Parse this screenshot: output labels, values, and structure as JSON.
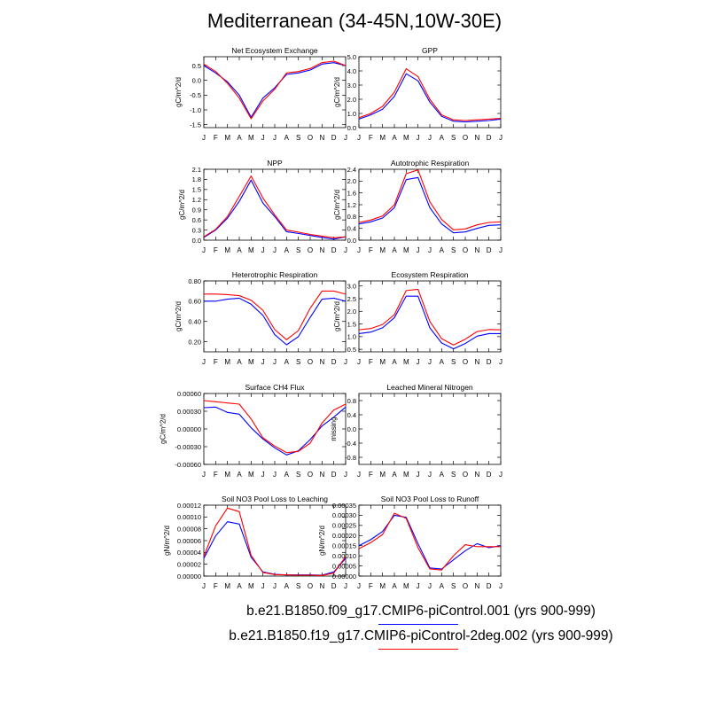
{
  "title": "Mediterranean (34-45N,10W-30E)",
  "colors": {
    "series1": "#0000ff",
    "series2": "#ff0000",
    "axis": "#000000"
  },
  "legend": [
    {
      "label": "b.e21.B1850.f09_g17.CMIP6-piControl.001 (yrs 900-999)",
      "color": "#0000ff"
    },
    {
      "label": "b.e21.B1850.f19_g17.CMIP6-piControl-2deg.002 (yrs 900-999)",
      "color": "#ff0000"
    }
  ],
  "chart_data": [
    {
      "type": "line",
      "title": "Net Ecosystem Exchange",
      "ylabel": "gC/m^2/d",
      "categories": [
        "J",
        "F",
        "M",
        "A",
        "M",
        "J",
        "J",
        "A",
        "S",
        "O",
        "N",
        "D",
        "J"
      ],
      "ylim": [
        -1.6,
        0.8
      ],
      "yticks": [
        -1.5,
        -1.0,
        -0.5,
        0.0,
        0.5
      ],
      "yticklabels": [
        "-1.5",
        "-1.0",
        "-0.5",
        "0.0",
        "0.5"
      ],
      "series": [
        {
          "values": [
            0.5,
            0.25,
            -0.05,
            -0.5,
            -1.25,
            -0.6,
            -0.25,
            0.2,
            0.25,
            0.35,
            0.55,
            0.6,
            0.5
          ]
        },
        {
          "values": [
            0.55,
            0.3,
            -0.1,
            -0.6,
            -1.3,
            -0.7,
            -0.3,
            0.25,
            0.3,
            0.4,
            0.6,
            0.65,
            0.5
          ]
        }
      ]
    },
    {
      "type": "line",
      "title": "GPP",
      "ylabel": "gC/m^2/d",
      "categories": [
        "J",
        "F",
        "M",
        "A",
        "M",
        "J",
        "J",
        "A",
        "S",
        "O",
        "N",
        "D",
        "J"
      ],
      "ylim": [
        0.0,
        5.0
      ],
      "yticks": [
        0.0,
        1.0,
        2.0,
        3.0,
        4.0,
        5.0
      ],
      "yticklabels": [
        "0.0",
        "1.0",
        "2.0",
        "3.0",
        "4.0",
        "5.0"
      ],
      "series": [
        {
          "values": [
            0.6,
            0.9,
            1.3,
            2.2,
            3.8,
            3.3,
            1.8,
            0.8,
            0.45,
            0.4,
            0.45,
            0.5,
            0.6
          ]
        },
        {
          "values": [
            0.7,
            1.0,
            1.5,
            2.5,
            4.15,
            3.6,
            2.0,
            0.9,
            0.55,
            0.5,
            0.55,
            0.6,
            0.65
          ]
        }
      ]
    },
    {
      "type": "line",
      "title": "NPP",
      "ylabel": "gC/m^2/d",
      "categories": [
        "J",
        "F",
        "M",
        "A",
        "M",
        "J",
        "J",
        "A",
        "S",
        "O",
        "N",
        "D",
        "J"
      ],
      "ylim": [
        0.0,
        2.1
      ],
      "yticks": [
        0.0,
        0.3,
        0.6,
        0.9,
        1.2,
        1.5,
        1.8,
        2.1
      ],
      "yticklabels": [
        "0.0",
        "0.3",
        "0.6",
        "0.9",
        "1.2",
        "1.5",
        "1.8",
        "2.1"
      ],
      "series": [
        {
          "values": [
            0.08,
            0.3,
            0.65,
            1.15,
            1.78,
            1.1,
            0.7,
            0.25,
            0.2,
            0.14,
            0.08,
            0.03,
            0.1
          ]
        },
        {
          "values": [
            0.1,
            0.32,
            0.7,
            1.3,
            1.9,
            1.25,
            0.75,
            0.3,
            0.24,
            0.17,
            0.12,
            0.07,
            0.1
          ]
        }
      ]
    },
    {
      "type": "line",
      "title": "Autotrophic Respiration",
      "ylabel": "gC/m^2/d",
      "categories": [
        "J",
        "F",
        "M",
        "A",
        "M",
        "J",
        "J",
        "A",
        "S",
        "O",
        "N",
        "D",
        "J"
      ],
      "ylim": [
        0.0,
        2.4
      ],
      "yticks": [
        0.0,
        0.4,
        0.8,
        1.2,
        1.6,
        2.0,
        2.4
      ],
      "yticklabels": [
        "0.0",
        "0.4",
        "0.8",
        "1.2",
        "1.6",
        "2.0",
        "2.4"
      ],
      "series": [
        {
          "values": [
            0.55,
            0.62,
            0.75,
            1.1,
            2.05,
            2.12,
            1.1,
            0.55,
            0.25,
            0.28,
            0.4,
            0.5,
            0.52
          ]
        },
        {
          "values": [
            0.6,
            0.68,
            0.82,
            1.2,
            2.25,
            2.38,
            1.3,
            0.7,
            0.35,
            0.38,
            0.52,
            0.6,
            0.62
          ]
        }
      ]
    },
    {
      "type": "line",
      "title": "Heterotrophic Respiration",
      "ylabel": "gC/m^2/d",
      "categories": [
        "J",
        "F",
        "M",
        "A",
        "M",
        "J",
        "J",
        "A",
        "S",
        "O",
        "N",
        "D",
        "J"
      ],
      "ylim": [
        0.1,
        0.8
      ],
      "yticks": [
        0.2,
        0.4,
        0.6,
        0.8
      ],
      "yticklabels": [
        "0.20",
        "0.40",
        "0.60",
        "0.80"
      ],
      "series": [
        {
          "values": [
            0.6,
            0.6,
            0.62,
            0.63,
            0.57,
            0.46,
            0.27,
            0.17,
            0.25,
            0.44,
            0.62,
            0.63,
            0.6
          ]
        },
        {
          "values": [
            0.67,
            0.67,
            0.665,
            0.655,
            0.61,
            0.51,
            0.32,
            0.22,
            0.31,
            0.53,
            0.7,
            0.7,
            0.67
          ]
        }
      ]
    },
    {
      "type": "line",
      "title": "Ecosystem Respiration",
      "ylabel": "gC/m^2/d",
      "categories": [
        "J",
        "F",
        "M",
        "A",
        "M",
        "J",
        "J",
        "A",
        "S",
        "O",
        "N",
        "D",
        "J"
      ],
      "ylim": [
        0.4,
        3.2
      ],
      "yticks": [
        0.5,
        1.0,
        1.5,
        2.0,
        2.5,
        3.0
      ],
      "yticklabels": [
        "0.5",
        "1.0",
        "1.5",
        "2.0",
        "2.5",
        "3.0"
      ],
      "series": [
        {
          "values": [
            1.12,
            1.18,
            1.35,
            1.75,
            2.6,
            2.6,
            1.35,
            0.75,
            0.52,
            0.73,
            1.02,
            1.12,
            1.12
          ]
        },
        {
          "values": [
            1.27,
            1.32,
            1.48,
            1.87,
            2.82,
            2.87,
            1.6,
            0.92,
            0.67,
            0.9,
            1.2,
            1.28,
            1.27
          ]
        }
      ]
    },
    {
      "type": "line",
      "title": "Surface CH4 Flux",
      "ylabel": "gC/m^2/d",
      "categories": [
        "J",
        "F",
        "M",
        "A",
        "M",
        "J",
        "J",
        "A",
        "S",
        "O",
        "N",
        "D",
        "J"
      ],
      "ylim": [
        -0.0006,
        0.0006
      ],
      "yticks": [
        -0.0006,
        -0.0003,
        0.0,
        0.0003,
        0.0006
      ],
      "yticklabels": [
        "-0.00060",
        "-0.00030",
        "0.00000",
        "0.00030",
        "0.00060"
      ],
      "series": [
        {
          "values": [
            0.00036,
            0.00037,
            0.00028,
            0.00025,
            2e-05,
            -0.00017,
            -0.00032,
            -0.00044,
            -0.00037,
            -0.00018,
            5e-05,
            0.0002,
            0.00037
          ]
        },
        {
          "values": [
            0.00048,
            0.00046,
            0.00044,
            0.00042,
            0.00017,
            -0.00015,
            -0.00029,
            -0.0004,
            -0.00038,
            -0.00024,
            0.0001,
            0.00032,
            0.00042
          ]
        }
      ]
    },
    {
      "type": "line",
      "title": "Leached Mineral Nitrogen",
      "ylabel": "missing",
      "categories": [
        "J",
        "F",
        "M",
        "A",
        "M",
        "J",
        "J",
        "A",
        "S",
        "O",
        "N",
        "D",
        "J"
      ],
      "ylim": [
        -1.0,
        1.0
      ],
      "yticks": [
        -0.8,
        -0.4,
        0.0,
        0.4,
        0.8
      ],
      "yticklabels": [
        "-0.8",
        "-0.4",
        "0.0",
        "0.4",
        "0.8"
      ],
      "series": []
    },
    {
      "type": "line",
      "title": "Soil NO3 Pool Loss to Leaching",
      "ylabel": "gN/m^2/d",
      "categories": [
        "J",
        "F",
        "M",
        "A",
        "M",
        "J",
        "J",
        "A",
        "S",
        "O",
        "N",
        "D",
        "J"
      ],
      "ylim": [
        0.0,
        0.00012
      ],
      "yticks": [
        0.0,
        2e-05,
        4e-05,
        6e-05,
        8e-05,
        0.0001,
        0.00012
      ],
      "yticklabels": [
        "0.00000",
        "0.00002",
        "0.00004",
        "0.00006",
        "0.00008",
        "0.00010",
        "0.00012"
      ],
      "series": [
        {
          "values": [
            3e-05,
            6.8e-05,
            9.2e-05,
            8.8e-05,
            3.2e-05,
            7e-06,
            3e-06,
            2e-06,
            2e-06,
            2e-06,
            1.5e-06,
            7e-06,
            3e-05
          ]
        },
        {
          "values": [
            3.3e-05,
            8.5e-05,
            0.000115,
            0.000109,
            3.5e-05,
            6e-06,
            2.5e-06,
            2e-06,
            1.5e-06,
            1.5e-06,
            1e-06,
            5e-06,
            3.3e-05
          ]
        }
      ]
    },
    {
      "type": "line",
      "title": "Soil NO3 Pool Loss to Runoff",
      "ylabel": "gN/m^2/d",
      "categories": [
        "J",
        "F",
        "M",
        "A",
        "M",
        "J",
        "J",
        "A",
        "S",
        "O",
        "N",
        "D",
        "J"
      ],
      "ylim": [
        0.0,
        0.00035
      ],
      "yticks": [
        0.0,
        5e-05,
        0.0001,
        0.00015,
        0.0002,
        0.00025,
        0.0003,
        0.00035
      ],
      "yticklabels": [
        "0.00000",
        "0.00005",
        "0.00010",
        "0.00015",
        "0.00020",
        "0.00025",
        "0.00030",
        "0.00035"
      ],
      "series": [
        {
          "values": [
            0.00015,
            0.00018,
            0.00022,
            0.0003,
            0.00029,
            0.00016,
            4e-05,
            3.5e-05,
            8e-05,
            0.000125,
            0.00016,
            0.00014,
            0.00015
          ]
        },
        {
          "values": [
            0.000135,
            0.000165,
            0.000205,
            0.00031,
            0.000285,
            0.00014,
            3.5e-05,
            3e-05,
            0.0001,
            0.000155,
            0.000145,
            0.000145,
            0.000145
          ]
        }
      ]
    }
  ]
}
